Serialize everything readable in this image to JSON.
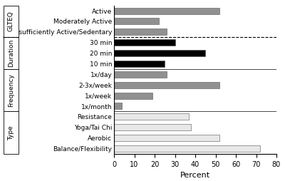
{
  "chart_data": {
    "type": "bar",
    "orientation": "horizontal",
    "categories": [
      "Active",
      "Moderately Active",
      "Insufficiently Active/Sedentary",
      "30 min",
      "20 min",
      "10 min",
      "1x/day",
      "2-3x/week",
      "1x/week",
      "1x/month",
      "Resistance",
      "Yoga/Tai Chi",
      "Aerobic",
      "Balance/Flexibility"
    ],
    "category_groups": [
      "GLTEQ",
      "GLTEQ",
      "GLTEQ",
      "Duration",
      "Duration",
      "Duration",
      "Frequency",
      "Frequency",
      "Frequency",
      "Frequency",
      "Type",
      "Type",
      "Type",
      "Type"
    ],
    "values": [
      52,
      22,
      26,
      30,
      45,
      25,
      26,
      52,
      19,
      4,
      37,
      38,
      52,
      72
    ],
    "colors": [
      "#909090",
      "#909090",
      "#909090",
      "#000000",
      "#000000",
      "#000000",
      "#909090",
      "#909090",
      "#909090",
      "#909090",
      "#e8e8e8",
      "#e8e8e8",
      "#e8e8e8",
      "#e8e8e8"
    ],
    "xlabel": "Percent",
    "xlim": [
      0,
      80
    ],
    "xticks": [
      0,
      10,
      20,
      30,
      40,
      50,
      60,
      70,
      80
    ],
    "grid": false
  }
}
